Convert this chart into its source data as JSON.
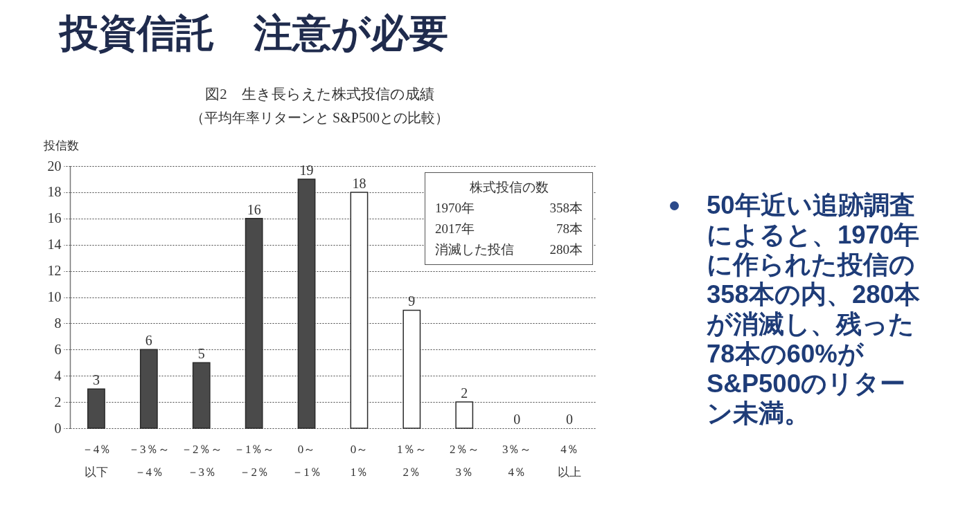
{
  "chart_data": {
    "type": "bar",
    "title": "投資信託　注意が必要",
    "subtitle": "図2　生き長らえた株式投信の成績",
    "ylabel": "投信数",
    "annotations": [
      "（平均年率リターンと S&P500との比較）",
      "株式投信の数",
      "1970年 358本",
      "2017年 78本",
      "消滅した投信 280本",
      "50年近い追跡調査によると、1970年に作られた投信の358本の内、280本が消滅し、残った78本の60%がS&P500のリターン未満。"
    ],
    "categories": [
      "－4％以下",
      "－3％～－4％",
      "－2％～－3％",
      "－1％～－2％",
      "0～－1％",
      "0～1％",
      "1％～2％",
      "2％～3％",
      "3％～4％",
      "4％以上"
    ],
    "values": [
      3,
      6,
      5,
      16,
      19,
      18,
      9,
      2,
      0,
      0
    ],
    "colors": [
      "#4a4a4a",
      "#4a4a4a",
      "#4a4a4a",
      "#4a4a4a",
      "#4a4a4a",
      "#ffffff",
      "#ffffff",
      "#ffffff",
      "#ffffff",
      "#ffffff"
    ],
    "ylim": [
      0,
      20
    ],
    "yticks": [
      0,
      2,
      4,
      6,
      8,
      10,
      12,
      14,
      16,
      18,
      20
    ],
    "grid": true,
    "data_labels": true
  }
}
